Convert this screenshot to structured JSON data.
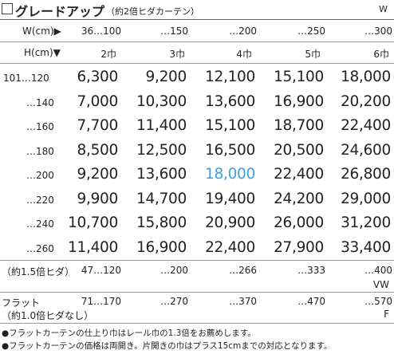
{
  "header": {
    "title": "グレードアップ",
    "subtitle": "（約2倍ヒダカーテン）",
    "w_mark": "W"
  },
  "width_row": {
    "label": "W(cm)▶",
    "values": [
      "36…100",
      "…150",
      "…200",
      "…250",
      "…300"
    ]
  },
  "height_row": {
    "label": "H(cm)▼",
    "values": [
      "2巾",
      "3巾",
      "4巾",
      "5巾",
      "6巾"
    ]
  },
  "price_rows": [
    {
      "h": "101…120",
      "prices": [
        "6,300",
        "9,200",
        "12,100",
        "15,100",
        "18,000"
      ]
    },
    {
      "h": "…140",
      "prices": [
        "7,000",
        "10,300",
        "13,600",
        "16,900",
        "20,200"
      ]
    },
    {
      "h": "…160",
      "prices": [
        "7,700",
        "11,400",
        "15,100",
        "18,700",
        "22,400"
      ]
    },
    {
      "h": "…180",
      "prices": [
        "8,500",
        "12,500",
        "16,500",
        "20,500",
        "24,600"
      ]
    },
    {
      "h": "…200",
      "prices": [
        "9,200",
        "13,600",
        "18,000",
        "22,400",
        "26,800"
      ]
    },
    {
      "h": "…220",
      "prices": [
        "9,900",
        "14,700",
        "19,400",
        "24,200",
        "29,000"
      ]
    },
    {
      "h": "…240",
      "prices": [
        "10,700",
        "15,800",
        "20,900",
        "26,000",
        "31,200"
      ]
    },
    {
      "h": "…260",
      "prices": [
        "11,400",
        "16,900",
        "22,400",
        "27,900",
        "33,400"
      ]
    }
  ],
  "highlight_color": "#3aa0d8",
  "hida_row": {
    "label": "（約1.5倍ヒダ）",
    "values": [
      "47…120",
      "…200",
      "…266",
      "…333",
      "…400"
    ],
    "mark": "VW"
  },
  "flat_row": {
    "label_line1": "フラット",
    "label_line2": "（約1.0倍ヒダなし）",
    "values": [
      "71…170",
      "…270",
      "…370",
      "…470",
      "…570"
    ],
    "mark": "F"
  },
  "notes": [
    "●フラットカーテンの仕上り巾はレール巾の1.3倍をお薦めします。",
    "●フラットカーテンの価格は両開き。片開きの巾はプラス15cmまでの対応となります。"
  ]
}
